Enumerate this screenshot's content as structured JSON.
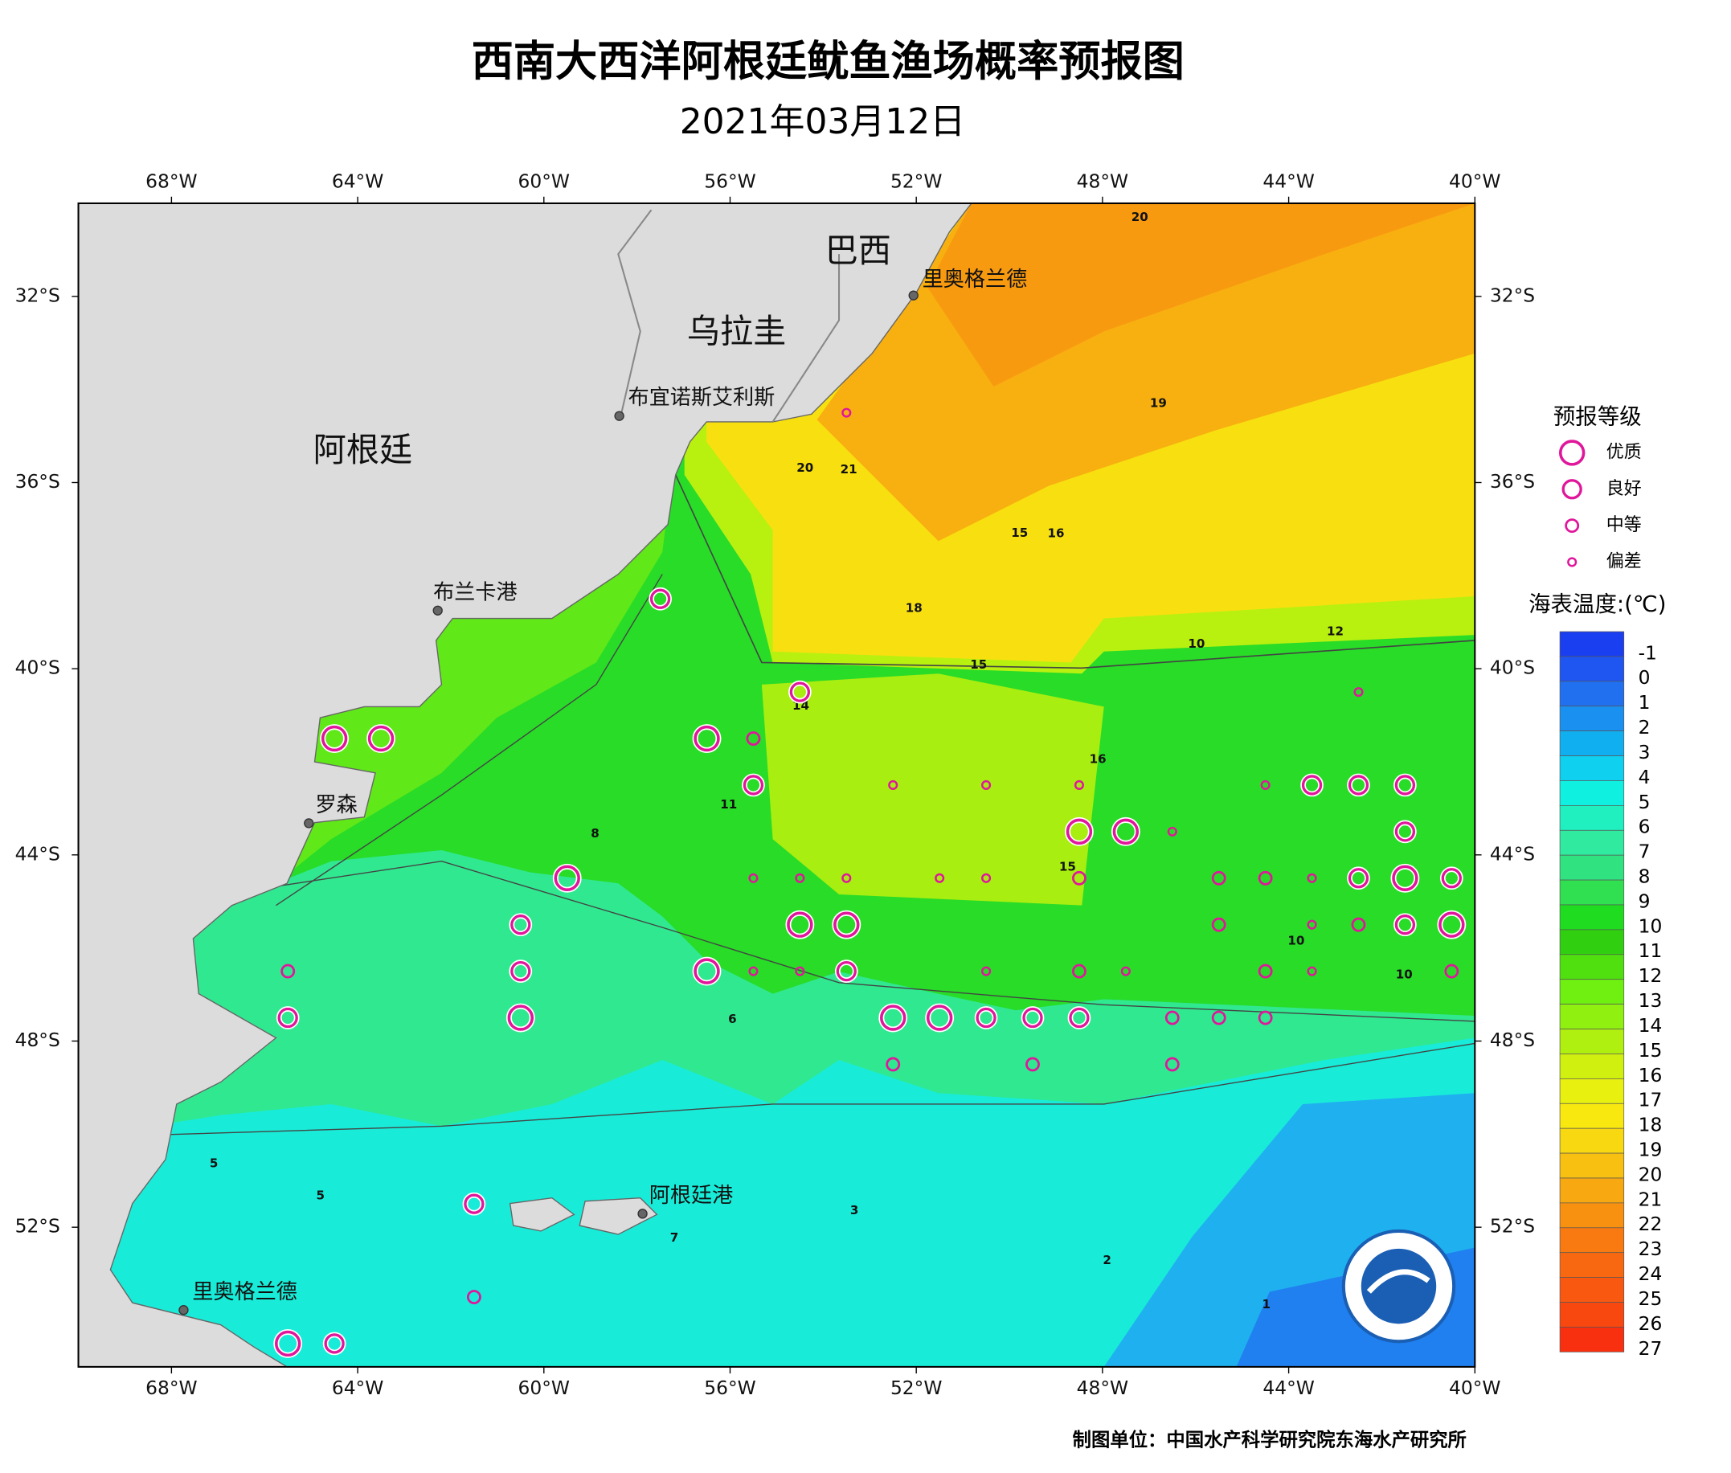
{
  "title": "西南大西洋阿根廷鱿鱼渔场概率预报图",
  "date": "2021年03月12日",
  "map": {
    "xlim": [
      -70,
      -40
    ],
    "ylim": [
      -55,
      -30
    ],
    "xticks": [
      {
        "value": -68,
        "label": "68°W"
      },
      {
        "value": -64,
        "label": "64°W"
      },
      {
        "value": -60,
        "label": "60°W"
      },
      {
        "value": -56,
        "label": "56°W"
      },
      {
        "value": -52,
        "label": "52°W"
      },
      {
        "value": -48,
        "label": "48°W"
      },
      {
        "value": -44,
        "label": "44°W"
      },
      {
        "value": -40,
        "label": "40°W"
      }
    ],
    "yticks": [
      {
        "value": -32,
        "label": "32°S"
      },
      {
        "value": -36,
        "label": "36°S"
      },
      {
        "value": -40,
        "label": "40°S"
      },
      {
        "value": -44,
        "label": "44°S"
      },
      {
        "value": -48,
        "label": "48°S"
      },
      {
        "value": -52,
        "label": "52°S"
      }
    ],
    "regions": [
      {
        "name": "巴西",
        "lon": -53.25,
        "lat": -31.07
      },
      {
        "name": "乌拉圭",
        "lon": -55.86,
        "lat": -32.81
      },
      {
        "name": "阿根廷",
        "lon": -63.89,
        "lat": -35.35
      }
    ],
    "cities": [
      {
        "name": "里奥格兰德",
        "lon": -52.06,
        "lat": -31.98
      },
      {
        "name": "布宜诺斯艾利斯",
        "lon": -58.38,
        "lat": -34.57
      },
      {
        "name": "布兰卡港",
        "lon": -62.28,
        "lat": -38.75
      },
      {
        "name": "罗森",
        "lon": -65.05,
        "lat": -43.32
      },
      {
        "name": "阿根廷港",
        "lon": -57.88,
        "lat": -51.71
      },
      {
        "name": "里奥格兰德",
        "lon": -67.74,
        "lat": -53.78
      }
    ],
    "contour_labels": [
      {
        "value": 20,
        "lon": -54.39,
        "lat": -35.69
      },
      {
        "value": 21,
        "lon": -53.45,
        "lat": -35.72
      },
      {
        "value": 15,
        "lon": -49.78,
        "lat": -37.09
      },
      {
        "value": 16,
        "lon": -49.0,
        "lat": -37.1
      },
      {
        "value": 10,
        "lon": -45.98,
        "lat": -39.47
      },
      {
        "value": 12,
        "lon": -43.0,
        "lat": -39.2
      },
      {
        "value": 15,
        "lon": -50.66,
        "lat": -39.92
      },
      {
        "value": 18,
        "lon": -52.05,
        "lat": -38.7
      },
      {
        "value": 14,
        "lon": -54.48,
        "lat": -40.8
      },
      {
        "value": 16,
        "lon": -48.1,
        "lat": -41.95
      },
      {
        "value": 11,
        "lon": -56.03,
        "lat": -42.92
      },
      {
        "value": 8,
        "lon": -58.9,
        "lat": -43.55
      },
      {
        "value": 15,
        "lon": -48.75,
        "lat": -44.26
      },
      {
        "value": 10,
        "lon": -43.84,
        "lat": -45.85
      },
      {
        "value": 10,
        "lon": -41.52,
        "lat": -46.58
      },
      {
        "value": 6,
        "lon": -55.95,
        "lat": -47.53
      },
      {
        "value": 5,
        "lon": -67.09,
        "lat": -50.63
      },
      {
        "value": 5,
        "lon": -64.8,
        "lat": -51.32
      },
      {
        "value": 7,
        "lon": -57.2,
        "lat": -52.23
      },
      {
        "value": 3,
        "lon": -53.33,
        "lat": -51.64
      },
      {
        "value": 2,
        "lon": -47.9,
        "lat": -52.71
      },
      {
        "value": 1,
        "lon": -44.48,
        "lat": -53.66
      },
      {
        "value": 19,
        "lon": -46.8,
        "lat": -34.3
      },
      {
        "value": 20,
        "lon": -47.2,
        "lat": -30.3
      }
    ],
    "points": [
      {
        "lon": -64.5,
        "lat": -41.5,
        "level": "优质"
      },
      {
        "lon": -63.5,
        "lat": -41.5,
        "level": "优质"
      },
      {
        "lon": -57.5,
        "lat": -38.5,
        "level": "良好"
      },
      {
        "lon": -54.5,
        "lat": -40.5,
        "level": "良好"
      },
      {
        "lon": -56.5,
        "lat": -41.5,
        "level": "优质"
      },
      {
        "lon": -55.5,
        "lat": -41.5,
        "level": "中等"
      },
      {
        "lon": -55.5,
        "lat": -42.5,
        "level": "良好"
      },
      {
        "lon": -53.5,
        "lat": -34.5,
        "level": "偏差"
      },
      {
        "lon": -52.5,
        "lat": -42.5,
        "level": "偏差"
      },
      {
        "lon": -50.5,
        "lat": -42.5,
        "level": "偏差"
      },
      {
        "lon": -48.5,
        "lat": -42.5,
        "level": "偏差"
      },
      {
        "lon": -44.5,
        "lat": -42.5,
        "level": "偏差"
      },
      {
        "lon": -43.5,
        "lat": -42.5,
        "level": "良好"
      },
      {
        "lon": -42.5,
        "lat": -42.5,
        "level": "良好"
      },
      {
        "lon": -41.5,
        "lat": -42.5,
        "level": "良好"
      },
      {
        "lon": -42.5,
        "lat": -40.5,
        "level": "偏差"
      },
      {
        "lon": -48.5,
        "lat": -43.5,
        "level": "优质"
      },
      {
        "lon": -47.5,
        "lat": -43.5,
        "level": "优质"
      },
      {
        "lon": -46.5,
        "lat": -43.5,
        "level": "偏差"
      },
      {
        "lon": -41.5,
        "lat": -43.5,
        "level": "良好"
      },
      {
        "lon": -59.5,
        "lat": -44.5,
        "level": "优质"
      },
      {
        "lon": -55.5,
        "lat": -44.5,
        "level": "偏差"
      },
      {
        "lon": -54.5,
        "lat": -44.5,
        "level": "偏差"
      },
      {
        "lon": -53.5,
        "lat": -44.5,
        "level": "偏差"
      },
      {
        "lon": -51.5,
        "lat": -44.5,
        "level": "偏差"
      },
      {
        "lon": -50.5,
        "lat": -44.5,
        "level": "偏差"
      },
      {
        "lon": -48.5,
        "lat": -44.5,
        "level": "中等"
      },
      {
        "lon": -45.5,
        "lat": -44.5,
        "level": "中等"
      },
      {
        "lon": -44.5,
        "lat": -44.5,
        "level": "中等"
      },
      {
        "lon": -43.5,
        "lat": -44.5,
        "level": "偏差"
      },
      {
        "lon": -42.5,
        "lat": -44.5,
        "level": "良好"
      },
      {
        "lon": -41.5,
        "lat": -44.5,
        "level": "优质"
      },
      {
        "lon": -40.5,
        "lat": -44.5,
        "level": "良好"
      },
      {
        "lon": -60.5,
        "lat": -45.5,
        "level": "良好"
      },
      {
        "lon": -54.5,
        "lat": -45.5,
        "level": "优质"
      },
      {
        "lon": -53.5,
        "lat": -45.5,
        "level": "优质"
      },
      {
        "lon": -45.5,
        "lat": -45.5,
        "level": "中等"
      },
      {
        "lon": -43.5,
        "lat": -45.5,
        "level": "偏差"
      },
      {
        "lon": -42.5,
        "lat": -45.5,
        "level": "中等"
      },
      {
        "lon": -41.5,
        "lat": -45.5,
        "level": "良好"
      },
      {
        "lon": -40.5,
        "lat": -45.5,
        "level": "优质"
      },
      {
        "lon": -65.5,
        "lat": -46.5,
        "level": "中等"
      },
      {
        "lon": -60.5,
        "lat": -46.5,
        "level": "良好"
      },
      {
        "lon": -56.5,
        "lat": -46.5,
        "level": "优质"
      },
      {
        "lon": -55.5,
        "lat": -46.5,
        "level": "偏差"
      },
      {
        "lon": -54.5,
        "lat": -46.5,
        "level": "偏差"
      },
      {
        "lon": -53.5,
        "lat": -46.5,
        "level": "良好"
      },
      {
        "lon": -50.5,
        "lat": -46.5,
        "level": "偏差"
      },
      {
        "lon": -48.5,
        "lat": -46.5,
        "level": "中等"
      },
      {
        "lon": -47.5,
        "lat": -46.5,
        "level": "偏差"
      },
      {
        "lon": -44.5,
        "lat": -46.5,
        "level": "中等"
      },
      {
        "lon": -43.5,
        "lat": -46.5,
        "level": "偏差"
      },
      {
        "lon": -40.5,
        "lat": -46.5,
        "level": "中等"
      },
      {
        "lon": -65.5,
        "lat": -47.5,
        "level": "良好"
      },
      {
        "lon": -60.5,
        "lat": -47.5,
        "level": "优质"
      },
      {
        "lon": -52.5,
        "lat": -47.5,
        "level": "优质"
      },
      {
        "lon": -51.5,
        "lat": -47.5,
        "level": "优质"
      },
      {
        "lon": -50.5,
        "lat": -47.5,
        "level": "良好"
      },
      {
        "lon": -49.5,
        "lat": -47.5,
        "level": "良好"
      },
      {
        "lon": -48.5,
        "lat": -47.5,
        "level": "良好"
      },
      {
        "lon": -46.5,
        "lat": -47.5,
        "level": "中等"
      },
      {
        "lon": -45.5,
        "lat": -47.5,
        "level": "中等"
      },
      {
        "lon": -44.5,
        "lat": -47.5,
        "level": "中等"
      },
      {
        "lon": -52.5,
        "lat": -48.5,
        "level": "中等"
      },
      {
        "lon": -49.5,
        "lat": -48.5,
        "level": "中等"
      },
      {
        "lon": -46.5,
        "lat": -48.5,
        "level": "中等"
      },
      {
        "lon": -61.5,
        "lat": -51.5,
        "level": "良好"
      },
      {
        "lon": -61.5,
        "lat": -53.5,
        "level": "中等"
      },
      {
        "lon": -65.5,
        "lat": -54.5,
        "level": "优质"
      },
      {
        "lon": -64.5,
        "lat": -54.5,
        "level": "良好"
      }
    ]
  },
  "legend": {
    "title": "预报等级",
    "items": [
      "优质",
      "良好",
      "中等",
      "偏差"
    ],
    "color": "#e0169b"
  },
  "colorbar": {
    "title": "海表温度:(℃)",
    "levels": [
      -1,
      0,
      1,
      2,
      3,
      4,
      5,
      6,
      7,
      8,
      9,
      10,
      11,
      12,
      13,
      14,
      15,
      16,
      17,
      18,
      19,
      20,
      21,
      22,
      23,
      24,
      25,
      26,
      27
    ],
    "colors": [
      "#1a3ff0",
      "#1f55f0",
      "#2070f0",
      "#1a90f0",
      "#10b0f0",
      "#10d0f0",
      "#10f0e0",
      "#20f0c0",
      "#30eaa0",
      "#30e280",
      "#30e050",
      "#20dc20",
      "#30d010",
      "#50e010",
      "#70f010",
      "#90f010",
      "#b0f010",
      "#d0f010",
      "#e8f010",
      "#f8e810",
      "#f8d810",
      "#f8c010",
      "#f8a810",
      "#f89010",
      "#f87a10",
      "#f86810",
      "#f85810",
      "#f84810",
      "#f83010"
    ]
  },
  "credit": "制图单位：中国水产科学研究院东海水产研究所"
}
